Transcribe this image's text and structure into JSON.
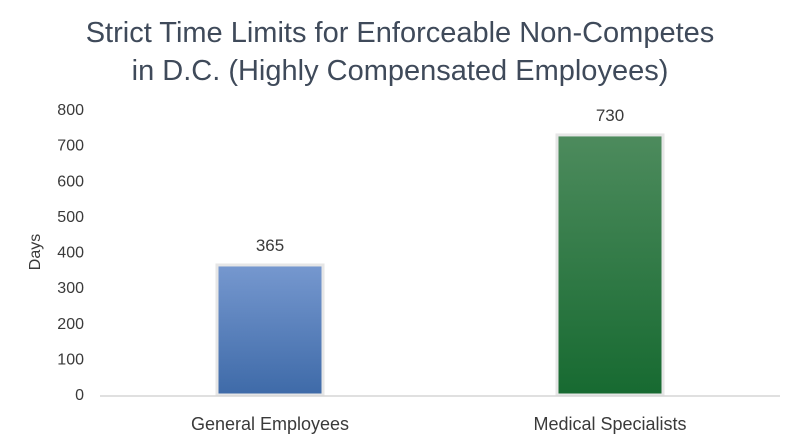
{
  "chart_data": {
    "type": "bar",
    "title_lines": [
      "Strict Time Limits for Enforceable Non-Competes",
      "in D.C. (Highly Compensated Employees)"
    ],
    "xlabel": "",
    "ylabel": "Days",
    "categories": [
      "General Employees",
      "Medical Specialists"
    ],
    "values": [
      365,
      730
    ],
    "data_labels": [
      "365",
      "730"
    ],
    "ylim": [
      0,
      800
    ],
    "yticks": [
      0,
      100,
      200,
      300,
      400,
      500,
      600,
      700,
      800
    ],
    "grid": false,
    "legend": "none",
    "colors": {
      "bar_general_top": "#7698cf",
      "bar_general_bottom": "#3e6aa8",
      "bar_medical_top": "#4d8b5d",
      "bar_medical_bottom": "#176a31",
      "axis": "#d6d6d6",
      "bar_border": "#e6e6e6"
    }
  }
}
